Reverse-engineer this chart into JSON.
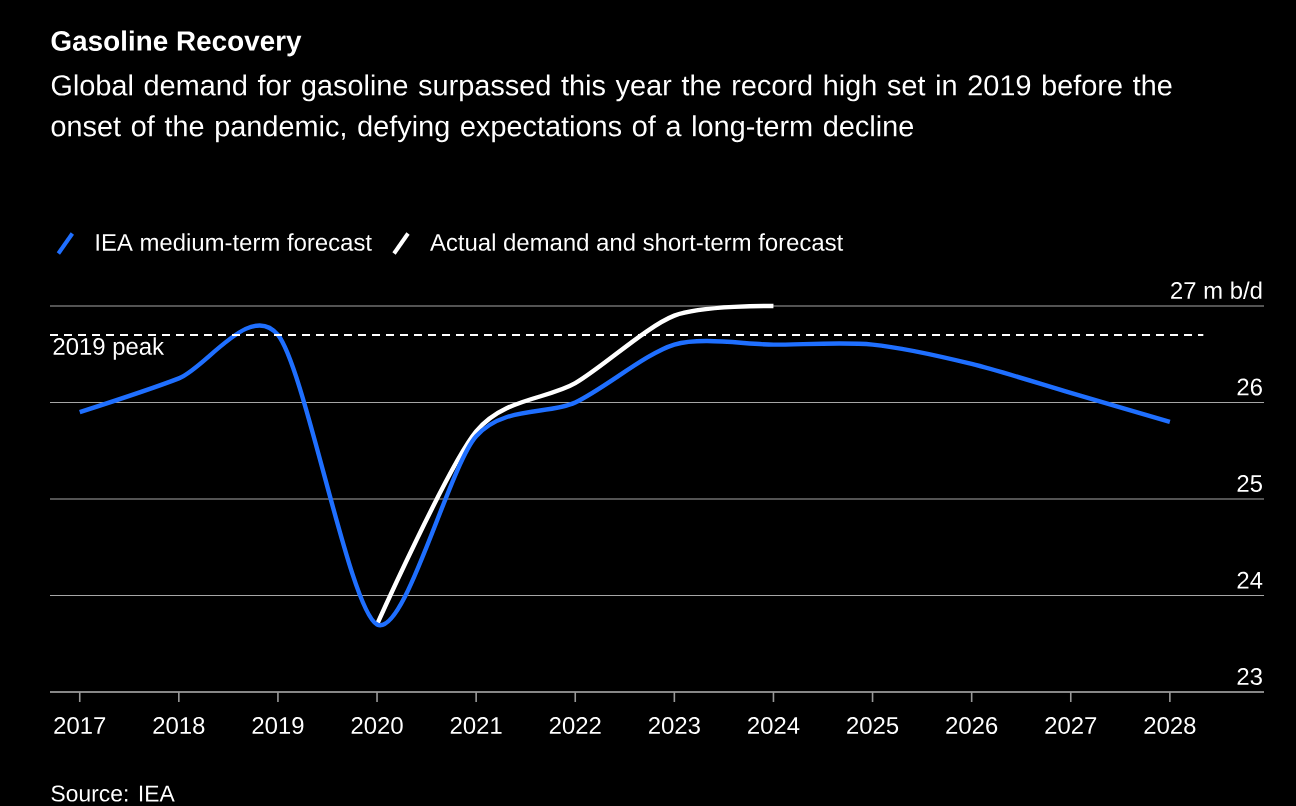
{
  "chart_data": {
    "type": "line",
    "title": "Gasoline Recovery",
    "subtitle": "Global demand for gasoline surpassed this year the record high set in 2019 before the onset of the pandemic, defying expectations of a long-term decline",
    "x": [
      2017,
      2018,
      2019,
      2020,
      2021,
      2022,
      2023,
      2024,
      2025,
      2026,
      2027,
      2028
    ],
    "series": [
      {
        "name": "IEA medium-term forecast",
        "color": "#1f6fff",
        "values": [
          25.9,
          26.25,
          26.7,
          23.7,
          25.65,
          26.0,
          26.6,
          26.6,
          26.6,
          26.4,
          26.1,
          25.8
        ]
      },
      {
        "name": "Actual demand and short-term forecast",
        "color": "#ffffff",
        "x": [
          2020,
          2021,
          2022,
          2023,
          2024
        ],
        "values": [
          23.7,
          25.7,
          26.2,
          26.9,
          27.0
        ]
      }
    ],
    "xlim": [
      2016.7,
      2028.95
    ],
    "xticks": [
      2017,
      2018,
      2019,
      2020,
      2021,
      2022,
      2023,
      2024,
      2025,
      2026,
      2027,
      2028
    ],
    "ylim": [
      23,
      27
    ],
    "yticks": [
      23,
      24,
      25,
      26,
      {
        "value": 27,
        "label": "27 m b/d"
      }
    ],
    "grid": "y",
    "legend": "top left",
    "ref_lines": [
      {
        "axis": "y",
        "value": 26.7,
        "label": "2019 peak",
        "color": "#ffffff",
        "line_style": "dashed"
      }
    ],
    "annotations": [
      "Source: IEA"
    ]
  }
}
